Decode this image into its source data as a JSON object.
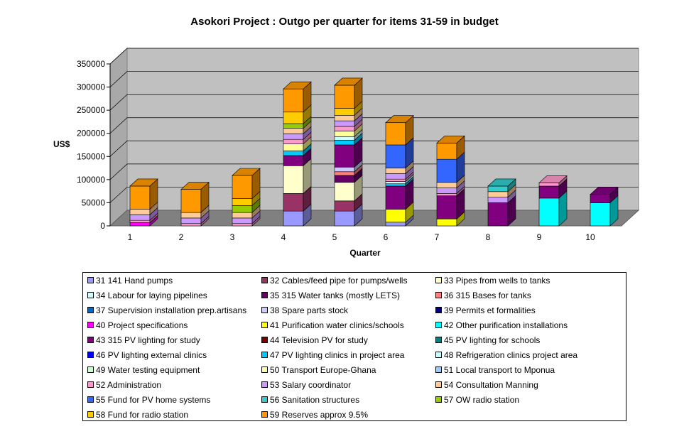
{
  "chart_data": {
    "type": "bar",
    "stacked": true,
    "three_d": true,
    "title": "Asokori Project : Outgo per quarter for items 31-59 in budget",
    "xlabel": "Quarter",
    "ylabel": "US$",
    "ylim": [
      0,
      350000
    ],
    "yticks": [
      "0",
      "50000",
      "100000",
      "150000",
      "200000",
      "250000",
      "300000",
      "350000"
    ],
    "categories": [
      "1",
      "2",
      "3",
      "4",
      "5",
      "6",
      "7",
      "8",
      "9",
      "10"
    ],
    "grid": true,
    "legend_position": "bottom",
    "series": [
      {
        "name": "31 141 Hand pumps",
        "color": "#9999FF",
        "values": [
          0,
          0,
          0,
          32000,
          32000,
          8000,
          0,
          0,
          0,
          0
        ]
      },
      {
        "name": "32 Cables/feed pipe for pumps/wells",
        "color": "#993366",
        "values": [
          0,
          0,
          0,
          38000,
          22000,
          0,
          0,
          0,
          0,
          0
        ]
      },
      {
        "name": "33 Pipes from wells to tanks",
        "color": "#FFFFCC",
        "values": [
          0,
          0,
          0,
          60000,
          40000,
          0,
          0,
          0,
          0,
          0
        ]
      },
      {
        "name": "34 Labour for laying pipelines",
        "color": "#CCFFFF",
        "values": [
          0,
          0,
          0,
          0,
          0,
          0,
          0,
          0,
          0,
          0
        ]
      },
      {
        "name": "35 315 Water tanks (mostly LETS)",
        "color": "#660066",
        "values": [
          0,
          0,
          0,
          0,
          15000,
          0,
          0,
          0,
          0,
          0
        ]
      },
      {
        "name": "36 315 Bases for tanks",
        "color": "#FF8080",
        "values": [
          0,
          0,
          0,
          0,
          8000,
          0,
          0,
          0,
          0,
          0
        ]
      },
      {
        "name": "37 Supervision installation prep.artisans",
        "color": "#0066CC",
        "values": [
          0,
          0,
          0,
          0,
          0,
          0,
          0,
          0,
          0,
          0
        ]
      },
      {
        "name": "38 Spare parts stock",
        "color": "#CCCCFF",
        "values": [
          0,
          0,
          0,
          0,
          10000,
          0,
          0,
          0,
          0,
          0
        ]
      },
      {
        "name": "39 Permits et formalities",
        "color": "#000080",
        "values": [
          0,
          0,
          0,
          0,
          0,
          0,
          0,
          0,
          0,
          0
        ]
      },
      {
        "name": "40 Project specifications",
        "color": "#FF00FF",
        "values": [
          7000,
          0,
          0,
          0,
          0,
          0,
          0,
          0,
          0,
          0
        ]
      },
      {
        "name": "41 Purification water clinics/schools",
        "color": "#FFFF00",
        "values": [
          0,
          0,
          0,
          0,
          0,
          28000,
          15000,
          0,
          0,
          0
        ]
      },
      {
        "name": "42 Other purification installations",
        "color": "#00FFFF",
        "values": [
          0,
          0,
          0,
          0,
          0,
          0,
          0,
          0,
          60000,
          50000
        ]
      },
      {
        "name": "43 315 PV lighting for study",
        "color": "#800080",
        "values": [
          0,
          0,
          0,
          22000,
          48000,
          50000,
          50000,
          50000,
          26000,
          18000
        ]
      },
      {
        "name": "44 Television PV for study",
        "color": "#800000",
        "values": [
          0,
          0,
          0,
          0,
          0,
          0,
          0,
          0,
          0,
          0
        ]
      },
      {
        "name": "45 PV lighting for schools",
        "color": "#008080",
        "values": [
          0,
          0,
          0,
          0,
          0,
          0,
          0,
          0,
          0,
          0
        ]
      },
      {
        "name": "46 PV lighting external clinics",
        "color": "#0000FF",
        "values": [
          0,
          0,
          0,
          0,
          0,
          0,
          0,
          0,
          0,
          0
        ]
      },
      {
        "name": "47 PV lighting clinics in project area",
        "color": "#00CCFF",
        "values": [
          0,
          0,
          0,
          10000,
          10000,
          5000,
          0,
          0,
          0,
          0
        ]
      },
      {
        "name": "48 Refrigeration clinics project area",
        "color": "#CCFFFF",
        "values": [
          0,
          0,
          0,
          0,
          8000,
          5000,
          0,
          0,
          0,
          0
        ]
      },
      {
        "name": "49 Water testing equipment",
        "color": "#CCFFCC",
        "values": [
          0,
          0,
          0,
          0,
          0,
          0,
          0,
          0,
          0,
          0
        ]
      },
      {
        "name": "50 Transport Europe-Ghana",
        "color": "#FFFF99",
        "values": [
          0,
          0,
          0,
          15000,
          12000,
          0,
          0,
          0,
          0,
          0
        ]
      },
      {
        "name": "51 Local transport to Mponua",
        "color": "#99CCFF",
        "values": [
          0,
          0,
          0,
          0,
          0,
          0,
          0,
          0,
          0,
          0
        ]
      },
      {
        "name": "52 Administration",
        "color": "#FF99CC",
        "values": [
          5000,
          5000,
          5000,
          10000,
          10000,
          5000,
          5000,
          0,
          7000,
          0
        ]
      },
      {
        "name": "53 Salary coordinator",
        "color": "#CC99FF",
        "values": [
          12000,
          12000,
          12000,
          12000,
          12000,
          12000,
          12000,
          12000,
          0,
          0
        ]
      },
      {
        "name": "54 Consultation Manning",
        "color": "#FFCC99",
        "values": [
          12000,
          12000,
          12000,
          12000,
          12000,
          12000,
          12000,
          12000,
          0,
          0
        ]
      },
      {
        "name": "55 Fund for PV home systems",
        "color": "#3366FF",
        "values": [
          0,
          0,
          0,
          0,
          0,
          50000,
          50000,
          0,
          0,
          0
        ]
      },
      {
        "name": "56 Sanitation structures",
        "color": "#33CCCC",
        "values": [
          0,
          0,
          0,
          0,
          0,
          0,
          0,
          12000,
          0,
          0
        ]
      },
      {
        "name": "57 OW radio station",
        "color": "#99CC00",
        "values": [
          0,
          0,
          15000,
          10000,
          0,
          0,
          0,
          0,
          0,
          0
        ]
      },
      {
        "name": "58 Fund for radio station",
        "color": "#FFCC00",
        "values": [
          0,
          0,
          15000,
          25000,
          15000,
          0,
          0,
          0,
          0,
          0
        ]
      },
      {
        "name": "59 Reserves approx 9.5%",
        "color": "#FF9900",
        "values": [
          50000,
          50000,
          50000,
          50000,
          50000,
          48000,
          35000,
          0,
          0,
          0
        ]
      }
    ]
  }
}
